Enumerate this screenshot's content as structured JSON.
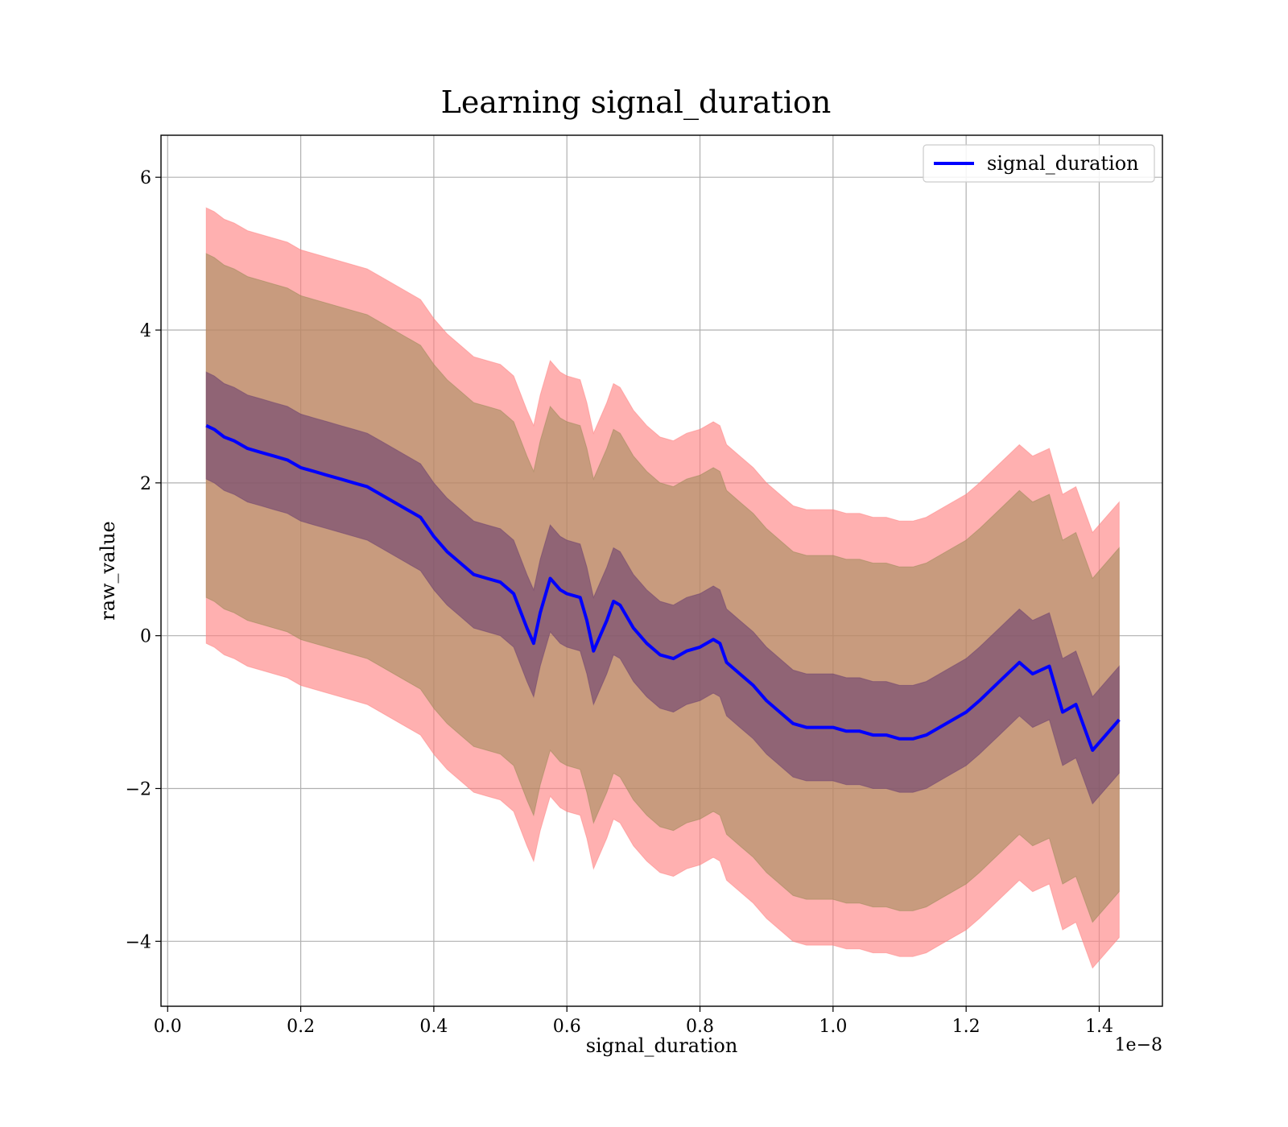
{
  "chart_data": {
    "type": "line",
    "title": "Learning signal_duration",
    "xlabel": "signal_duration",
    "ylabel": "raw_value",
    "x_multiplier_label": "1e−8",
    "xlim": [
      -0.01,
      1.495
    ],
    "ylim": [
      -4.85,
      6.55
    ],
    "x_ticks": [
      0.0,
      0.2,
      0.4,
      0.6,
      0.8,
      1.0,
      1.2,
      1.4
    ],
    "x_tick_labels": [
      "0.0",
      "0.2",
      "0.4",
      "0.6",
      "0.8",
      "1.0",
      "1.2",
      "1.4"
    ],
    "y_ticks": [
      -4,
      -2,
      0,
      2,
      4,
      6
    ],
    "y_tick_labels": [
      "−4",
      "−2",
      "0",
      "2",
      "4",
      "6"
    ],
    "grid": true,
    "legend_position": "top-right",
    "colors": {
      "line": "#0000ff",
      "outer_band": "#ff8080",
      "middle_band": "#9a8a55",
      "inner_band": "#6b3f6f"
    },
    "series": [
      {
        "name": "signal_duration",
        "x": [
          0.058,
          0.07,
          0.085,
          0.1,
          0.12,
          0.14,
          0.16,
          0.18,
          0.2,
          0.22,
          0.24,
          0.26,
          0.28,
          0.3,
          0.32,
          0.34,
          0.36,
          0.38,
          0.4,
          0.42,
          0.44,
          0.46,
          0.48,
          0.5,
          0.52,
          0.54,
          0.55,
          0.56,
          0.575,
          0.59,
          0.6,
          0.62,
          0.63,
          0.64,
          0.66,
          0.67,
          0.68,
          0.7,
          0.72,
          0.74,
          0.76,
          0.78,
          0.8,
          0.82,
          0.83,
          0.84,
          0.86,
          0.88,
          0.9,
          0.92,
          0.94,
          0.96,
          0.98,
          1.0,
          1.02,
          1.04,
          1.06,
          1.08,
          1.1,
          1.12,
          1.14,
          1.16,
          1.18,
          1.2,
          1.22,
          1.25,
          1.28,
          1.3,
          1.325,
          1.345,
          1.365,
          1.39,
          1.43
        ],
        "y": [
          2.75,
          2.7,
          2.6,
          2.55,
          2.45,
          2.4,
          2.35,
          2.3,
          2.2,
          2.15,
          2.1,
          2.05,
          2.0,
          1.95,
          1.85,
          1.75,
          1.65,
          1.55,
          1.3,
          1.1,
          0.95,
          0.8,
          0.75,
          0.7,
          0.55,
          0.1,
          -0.1,
          0.3,
          0.75,
          0.6,
          0.55,
          0.5,
          0.2,
          -0.2,
          0.2,
          0.45,
          0.4,
          0.1,
          -0.1,
          -0.25,
          -0.3,
          -0.2,
          -0.15,
          -0.05,
          -0.1,
          -0.35,
          -0.5,
          -0.65,
          -0.85,
          -1.0,
          -1.15,
          -1.2,
          -1.2,
          -1.2,
          -1.25,
          -1.25,
          -1.3,
          -1.3,
          -1.35,
          -1.35,
          -1.3,
          -1.2,
          -1.1,
          -1.0,
          -0.85,
          -0.6,
          -0.35,
          -0.5,
          -0.4,
          -1.0,
          -0.9,
          -1.5,
          -1.1
        ],
        "bands": [
          {
            "name": "inner",
            "lower_offset": 0.7,
            "upper_offset": 0.7
          },
          {
            "name": "middle",
            "lower_offset": 2.25,
            "upper_offset": 2.25
          },
          {
            "name": "outer",
            "lower_offset": 2.85,
            "upper_offset": 2.85
          }
        ]
      }
    ]
  }
}
